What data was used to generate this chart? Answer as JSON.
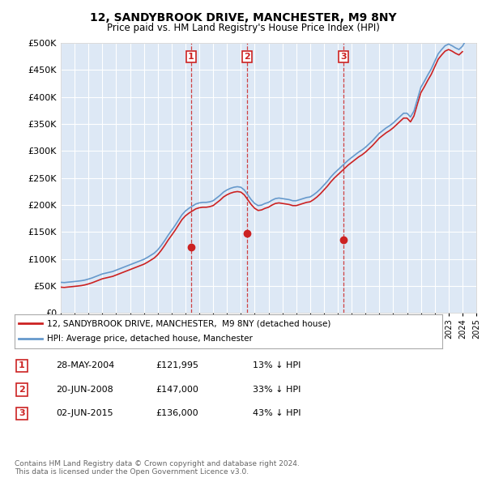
{
  "title": "12, SANDYBROOK DRIVE, MANCHESTER, M9 8NY",
  "subtitle": "Price paid vs. HM Land Registry's House Price Index (HPI)",
  "plot_bg_color": "#dde8f5",
  "ylim": [
    0,
    500000
  ],
  "yticks": [
    0,
    50000,
    100000,
    150000,
    200000,
    250000,
    300000,
    350000,
    400000,
    450000,
    500000
  ],
  "hpi_color": "#6699cc",
  "price_color": "#cc2222",
  "sale_year_nums": [
    2004.41,
    2008.46,
    2015.42
  ],
  "sale_prices": [
    121995,
    147000,
    136000
  ],
  "sale_labels": [
    "1",
    "2",
    "3"
  ],
  "legend_label_price": "12, SANDYBROOK DRIVE, MANCHESTER,  M9 8NY (detached house)",
  "legend_label_hpi": "HPI: Average price, detached house, Manchester",
  "table_rows": [
    [
      "1",
      "28-MAY-2004",
      "£121,995",
      "13% ↓ HPI"
    ],
    [
      "2",
      "20-JUN-2008",
      "£147,000",
      "33% ↓ HPI"
    ],
    [
      "3",
      "02-JUN-2015",
      "£136,000",
      "43% ↓ HPI"
    ]
  ],
  "footer": "Contains HM Land Registry data © Crown copyright and database right 2024.\nThis data is licensed under the Open Government Licence v3.0.",
  "hpi_years": [
    1995,
    1995.25,
    1995.5,
    1995.75,
    1996,
    1996.25,
    1996.5,
    1996.75,
    1997,
    1997.25,
    1997.5,
    1997.75,
    1998,
    1998.25,
    1998.5,
    1998.75,
    1999,
    1999.25,
    1999.5,
    1999.75,
    2000,
    2000.25,
    2000.5,
    2000.75,
    2001,
    2001.25,
    2001.5,
    2001.75,
    2002,
    2002.25,
    2002.5,
    2002.75,
    2003,
    2003.25,
    2003.5,
    2003.75,
    2004,
    2004.25,
    2004.5,
    2004.75,
    2005,
    2005.25,
    2005.5,
    2005.75,
    2006,
    2006.25,
    2006.5,
    2006.75,
    2007,
    2007.25,
    2007.5,
    2007.75,
    2008,
    2008.25,
    2008.5,
    2008.75,
    2009,
    2009.25,
    2009.5,
    2009.75,
    2010,
    2010.25,
    2010.5,
    2010.75,
    2011,
    2011.25,
    2011.5,
    2011.75,
    2012,
    2012.25,
    2012.5,
    2012.75,
    2013,
    2013.25,
    2013.5,
    2013.75,
    2014,
    2014.25,
    2014.5,
    2014.75,
    2015,
    2015.25,
    2015.5,
    2015.75,
    2016,
    2016.25,
    2016.5,
    2016.75,
    2017,
    2017.25,
    2017.5,
    2017.75,
    2018,
    2018.25,
    2018.5,
    2018.75,
    2019,
    2019.25,
    2019.5,
    2019.75,
    2020,
    2020.25,
    2020.5,
    2020.75,
    2021,
    2021.25,
    2021.5,
    2021.75,
    2022,
    2022.25,
    2022.5,
    2022.75,
    2023,
    2023.25,
    2023.5,
    2023.75,
    2024,
    2024.25
  ],
  "hpi_vals": [
    57000,
    56500,
    57200,
    57800,
    58500,
    59200,
    60000,
    61200,
    63000,
    65000,
    67500,
    70000,
    72500,
    74000,
    75500,
    77000,
    79500,
    82000,
    84500,
    87000,
    89500,
    92000,
    94500,
    97000,
    99500,
    103000,
    107000,
    111000,
    117000,
    125000,
    134000,
    144000,
    153000,
    162000,
    172000,
    182000,
    189000,
    194000,
    198000,
    202000,
    204000,
    205000,
    205000,
    206000,
    208000,
    213000,
    218000,
    224000,
    228000,
    231000,
    233000,
    234000,
    233000,
    228000,
    219000,
    210000,
    203000,
    199000,
    200000,
    203000,
    205000,
    209000,
    212000,
    213000,
    212000,
    211000,
    210000,
    208000,
    208000,
    210000,
    212000,
    214000,
    215000,
    219000,
    224000,
    230000,
    237000,
    244000,
    252000,
    259000,
    265000,
    271000,
    277000,
    283000,
    288000,
    293000,
    298000,
    302000,
    307000,
    313000,
    319000,
    326000,
    333000,
    338000,
    343000,
    347000,
    352000,
    358000,
    364000,
    370000,
    370000,
    363000,
    374000,
    396000,
    418000,
    429000,
    441000,
    452000,
    466000,
    480000,
    488000,
    495000,
    498000,
    495000,
    491000,
    488000,
    494000,
    505000
  ],
  "price_years": [
    1995,
    1995.25,
    1995.5,
    1995.75,
    1996,
    1996.25,
    1996.5,
    1996.75,
    1997,
    1997.25,
    1997.5,
    1997.75,
    1998,
    1998.25,
    1998.5,
    1998.75,
    1999,
    1999.25,
    1999.5,
    1999.75,
    2000,
    2000.25,
    2000.5,
    2000.75,
    2001,
    2001.25,
    2001.5,
    2001.75,
    2002,
    2002.25,
    2002.5,
    2002.75,
    2003,
    2003.25,
    2003.5,
    2003.75,
    2004,
    2004.25,
    2004.5,
    2004.75,
    2005,
    2005.25,
    2005.5,
    2005.75,
    2006,
    2006.25,
    2006.5,
    2006.75,
    2007,
    2007.25,
    2007.5,
    2007.75,
    2008,
    2008.25,
    2008.5,
    2008.75,
    2009,
    2009.25,
    2009.5,
    2009.75,
    2010,
    2010.25,
    2010.5,
    2010.75,
    2011,
    2011.25,
    2011.5,
    2011.75,
    2012,
    2012.25,
    2012.5,
    2012.75,
    2013,
    2013.25,
    2013.5,
    2013.75,
    2014,
    2014.25,
    2014.5,
    2014.75,
    2015,
    2015.25,
    2015.5,
    2015.75,
    2016,
    2016.25,
    2016.5,
    2016.75,
    2017,
    2017.25,
    2017.5,
    2017.75,
    2018,
    2018.25,
    2018.5,
    2018.75,
    2019,
    2019.25,
    2019.5,
    2019.75,
    2020,
    2020.25,
    2020.5,
    2020.75,
    2021,
    2021.25,
    2021.5,
    2021.75,
    2022,
    2022.25,
    2022.5,
    2022.75,
    2023,
    2023.25,
    2023.5,
    2023.75,
    2024
  ],
  "price_vals": [
    48000,
    47500,
    48200,
    48800,
    49500,
    50200,
    51000,
    52200,
    54000,
    56000,
    58500,
    61000,
    63500,
    65000,
    66500,
    68000,
    70500,
    73000,
    75500,
    78000,
    80500,
    83000,
    85500,
    88000,
    90500,
    94000,
    98000,
    102000,
    108000,
    116000,
    125000,
    135000,
    144000,
    153000,
    163000,
    173000,
    180000,
    185000,
    189000,
    193000,
    195000,
    196000,
    196000,
    197000,
    199000,
    204000,
    209000,
    215000,
    219000,
    222000,
    224000,
    225000,
    224000,
    219000,
    210000,
    201000,
    194000,
    190000,
    191000,
    194000,
    196000,
    200000,
    203000,
    204000,
    203000,
    202000,
    201000,
    199000,
    199000,
    201000,
    203000,
    205000,
    206000,
    210000,
    215000,
    221000,
    228000,
    235000,
    243000,
    250000,
    256000,
    262000,
    268000,
    274000,
    279000,
    284000,
    289000,
    293000,
    298000,
    304000,
    310000,
    317000,
    324000,
    329000,
    334000,
    338000,
    343000,
    349000,
    355000,
    361000,
    361000,
    354000,
    365000,
    387000,
    408000,
    419000,
    431000,
    442000,
    456000,
    470000,
    478000,
    485000,
    488000,
    485000,
    481000,
    478000,
    484000
  ]
}
